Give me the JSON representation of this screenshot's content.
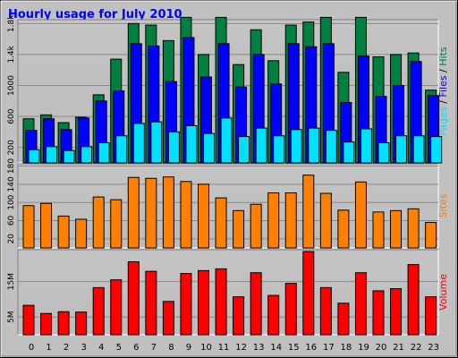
{
  "title": "Hourly usage for July 2010",
  "colors": {
    "background": "#c0c0c0",
    "title": "#0000ff",
    "hits": "#008040",
    "files": "#0000ff",
    "pages": "#00e0ff",
    "sites": "#ff8000",
    "volume": "#ff0000"
  },
  "chart_data": [
    {
      "type": "bar",
      "panel": "hits-files-pages",
      "categories": [
        "0",
        "1",
        "2",
        "3",
        "4",
        "5",
        "6",
        "7",
        "8",
        "9",
        "10",
        "11",
        "12",
        "13",
        "14",
        "15",
        "16",
        "17",
        "18",
        "19",
        "20",
        "21",
        "22",
        "23"
      ],
      "ylim": [
        0,
        1850
      ],
      "yticks": [
        {
          "value": 200,
          "label": "200"
        },
        {
          "value": 600,
          "label": "600"
        },
        {
          "value": 1000,
          "label": "1000"
        },
        {
          "value": 1400,
          "label": "1.4k"
        },
        {
          "value": 1800,
          "label": "1.8k"
        }
      ],
      "ylabel_parts": [
        {
          "text": "Pages",
          "color_key": "pages"
        },
        {
          "text": " / ",
          "color_key": "axis"
        },
        {
          "text": "Files",
          "color_key": "files"
        },
        {
          "text": " / ",
          "color_key": "axis"
        },
        {
          "text": "Hits",
          "color_key": "hits"
        }
      ],
      "series": [
        {
          "name": "Hits",
          "color_key": "hits",
          "values": [
            570,
            620,
            520,
            590,
            880,
            1340,
            1800,
            1780,
            1580,
            1880,
            1400,
            1880,
            1270,
            1720,
            1320,
            1780,
            1820,
            1880,
            1170,
            1880,
            1370,
            1400,
            1420,
            940
          ]
        },
        {
          "name": "Files",
          "color_key": "files",
          "values": [
            420,
            570,
            430,
            580,
            800,
            930,
            1540,
            1510,
            1050,
            1620,
            1110,
            1540,
            980,
            1400,
            1020,
            1540,
            1500,
            1540,
            780,
            1380,
            860,
            1000,
            1310,
            870
          ]
        },
        {
          "name": "Pages",
          "color_key": "pages",
          "values": [
            170,
            210,
            160,
            210,
            260,
            350,
            510,
            530,
            400,
            480,
            380,
            580,
            340,
            450,
            350,
            430,
            450,
            420,
            270,
            440,
            260,
            350,
            350,
            340
          ]
        }
      ]
    },
    {
      "type": "bar",
      "panel": "sites",
      "categories": [
        "0",
        "1",
        "2",
        "3",
        "4",
        "5",
        "6",
        "7",
        "8",
        "9",
        "10",
        "11",
        "12",
        "13",
        "14",
        "15",
        "16",
        "17",
        "18",
        "19",
        "20",
        "21",
        "22",
        "23"
      ],
      "ylim": [
        0,
        185
      ],
      "yticks": [
        {
          "value": 20,
          "label": "20"
        },
        {
          "value": 60,
          "label": "60"
        },
        {
          "value": 100,
          "label": "100"
        },
        {
          "value": 140,
          "label": "140"
        },
        {
          "value": 180,
          "label": "180"
        }
      ],
      "ylabel_parts": [
        {
          "text": "Sites",
          "color_key": "sites"
        }
      ],
      "series": [
        {
          "name": "Sites",
          "color_key": "sites",
          "values": [
            93,
            98,
            70,
            63,
            112,
            106,
            155,
            153,
            156,
            146,
            140,
            110,
            82,
            96,
            121,
            121,
            160,
            120,
            83,
            145,
            79,
            82,
            86,
            56
          ]
        }
      ]
    },
    {
      "type": "bar",
      "panel": "volume",
      "categories": [
        "0",
        "1",
        "2",
        "3",
        "4",
        "5",
        "6",
        "7",
        "8",
        "9",
        "10",
        "11",
        "12",
        "13",
        "14",
        "15",
        "16",
        "17",
        "18",
        "19",
        "20",
        "21",
        "22",
        "23"
      ],
      "ylim": [
        0,
        24
      ],
      "yticks": [
        {
          "value": 5,
          "label": "5M"
        },
        {
          "value": 15,
          "label": "15M"
        }
      ],
      "ylabel_parts": [
        {
          "text": "Volume",
          "color_key": "volume"
        }
      ],
      "series": [
        {
          "name": "Volume",
          "color_key": "volume",
          "values": [
            8.3,
            6.0,
            6.5,
            6.4,
            13.3,
            15.5,
            20.6,
            17.9,
            9.4,
            17.3,
            18.1,
            18.6,
            10.7,
            17.5,
            11.1,
            14.5,
            23.5,
            13.3,
            8.9,
            17.5,
            12.4,
            13.0,
            19.8,
            10.7
          ]
        }
      ]
    }
  ]
}
